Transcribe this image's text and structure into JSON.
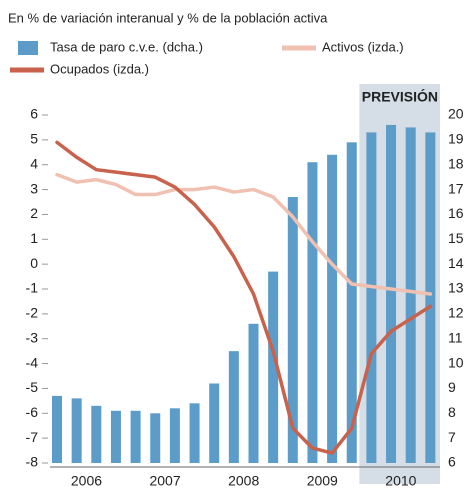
{
  "chart_data": {
    "type": "bar-line",
    "subtitle": "En % de variación interanual y % de la población activa",
    "forecast_label": "PREVISIÓN",
    "year_labels": [
      "2006",
      "2007",
      "2008",
      "2009",
      "2010"
    ],
    "forecast_from": 16,
    "series": [
      {
        "name": "Tasa de paro c.v.e. (dcha.)",
        "color": "#5b9cc8",
        "kind": "bar",
        "axis": "y2",
        "values": [
          8.7,
          8.6,
          8.3,
          8.1,
          8.1,
          8.0,
          8.2,
          8.4,
          9.2,
          10.5,
          11.6,
          13.7,
          16.7,
          18.1,
          18.4,
          18.9,
          19.3,
          19.6,
          19.5,
          19.3
        ]
      },
      {
        "name": "Activos (izda.)",
        "color": "#f0c0b0",
        "kind": "line",
        "values": [
          3.6,
          3.3,
          3.4,
          3.2,
          2.8,
          2.8,
          3.0,
          3.0,
          3.1,
          2.9,
          3.0,
          2.7,
          1.9,
          0.9,
          0.0,
          -0.8,
          -0.9,
          -1.0,
          -1.1,
          -1.2
        ]
      },
      {
        "name": "Ocupados (izda.)",
        "color": "#c9624c",
        "kind": "line",
        "values": [
          4.9,
          4.3,
          3.8,
          3.7,
          3.6,
          3.5,
          3.1,
          2.4,
          1.5,
          0.3,
          -1.2,
          -3.5,
          -6.6,
          -7.4,
          -7.6,
          -6.6,
          -3.6,
          -2.7,
          -2.2,
          -1.7
        ]
      }
    ],
    "ylim": [
      -8,
      6
    ],
    "yticks": [
      6,
      5,
      4,
      3,
      2,
      1,
      0,
      -1,
      -2,
      -3,
      -4,
      -5,
      -6,
      -7,
      -8
    ],
    "y2lim": [
      6,
      20
    ],
    "y2ticks": [
      20,
      19,
      18,
      17,
      16,
      15,
      14,
      13,
      12,
      11,
      10,
      9,
      8,
      7,
      6
    ]
  }
}
